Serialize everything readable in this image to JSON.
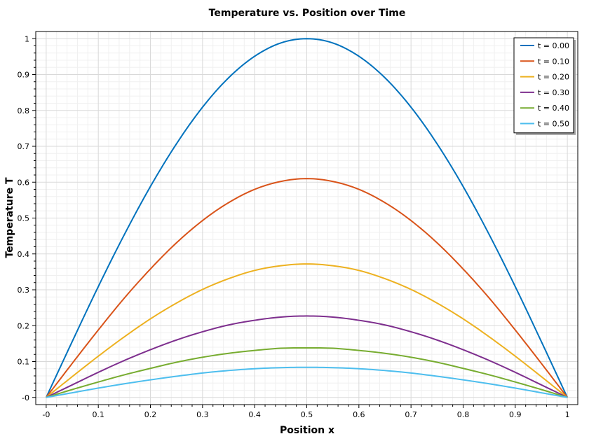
{
  "chart_data": {
    "type": "line",
    "title": "Temperature vs. Position over Time",
    "xlabel": "Position x",
    "ylabel": "Temperature T",
    "xlim": [
      -0.02,
      1.02
    ],
    "ylim": [
      -0.02,
      1.02
    ],
    "x_ticks": [
      0,
      0.1,
      0.2,
      0.3,
      0.4,
      0.5,
      0.6,
      0.7,
      0.8,
      0.9,
      1
    ],
    "x_tick_labels": [
      "-0",
      "0.1",
      "0.2",
      "0.3",
      "0.4",
      "0.5",
      "0.6",
      "0.7",
      "0.8",
      "0.9",
      "1"
    ],
    "y_ticks": [
      0,
      0.1,
      0.2,
      0.3,
      0.4,
      0.5,
      0.6,
      0.7,
      0.8,
      0.9,
      1
    ],
    "y_tick_labels": [
      "-0",
      "0.1",
      "0.2",
      "0.3",
      "0.4",
      "0.5",
      "0.6",
      "0.7",
      "0.8",
      "0.9",
      "1"
    ],
    "grid": true,
    "legend_position": "top-right",
    "x": [
      0,
      0.05,
      0.1,
      0.15,
      0.2,
      0.25,
      0.3,
      0.35,
      0.4,
      0.45,
      0.5,
      0.55,
      0.6,
      0.65,
      0.7,
      0.75,
      0.8,
      0.85,
      0.9,
      0.95,
      1
    ],
    "series": [
      {
        "name": "t = 0.00",
        "color": "#0072BD",
        "values": [
          0,
          0.156,
          0.309,
          0.454,
          0.588,
          0.707,
          0.809,
          0.891,
          0.951,
          0.988,
          1.0,
          0.988,
          0.951,
          0.891,
          0.809,
          0.707,
          0.588,
          0.454,
          0.309,
          0.156,
          0
        ]
      },
      {
        "name": "t = 0.10",
        "color": "#D95319",
        "values": [
          0,
          0.095,
          0.188,
          0.277,
          0.358,
          0.431,
          0.493,
          0.543,
          0.58,
          0.602,
          0.61,
          0.602,
          0.58,
          0.543,
          0.493,
          0.431,
          0.358,
          0.277,
          0.188,
          0.095,
          0
        ]
      },
      {
        "name": "t = 0.20",
        "color": "#EDB120",
        "values": [
          0,
          0.058,
          0.115,
          0.169,
          0.219,
          0.263,
          0.301,
          0.331,
          0.354,
          0.367,
          0.372,
          0.367,
          0.354,
          0.331,
          0.301,
          0.263,
          0.219,
          0.169,
          0.115,
          0.058,
          0
        ]
      },
      {
        "name": "t = 0.30",
        "color": "#7E2F8E",
        "values": [
          0,
          0.035,
          0.07,
          0.103,
          0.133,
          0.16,
          0.183,
          0.202,
          0.215,
          0.224,
          0.227,
          0.224,
          0.215,
          0.202,
          0.183,
          0.16,
          0.133,
          0.103,
          0.07,
          0.035,
          0
        ]
      },
      {
        "name": "t = 0.40",
        "color": "#77AC30",
        "values": [
          0,
          0.022,
          0.043,
          0.063,
          0.081,
          0.098,
          0.112,
          0.123,
          0.131,
          0.137,
          0.138,
          0.137,
          0.131,
          0.123,
          0.112,
          0.098,
          0.081,
          0.063,
          0.043,
          0.022,
          0
        ]
      },
      {
        "name": "t = 0.50",
        "color": "#4DBEEE",
        "values": [
          0,
          0.013,
          0.026,
          0.038,
          0.049,
          0.059,
          0.068,
          0.075,
          0.08,
          0.083,
          0.084,
          0.083,
          0.08,
          0.075,
          0.068,
          0.059,
          0.049,
          0.038,
          0.026,
          0.013,
          0
        ]
      }
    ]
  }
}
